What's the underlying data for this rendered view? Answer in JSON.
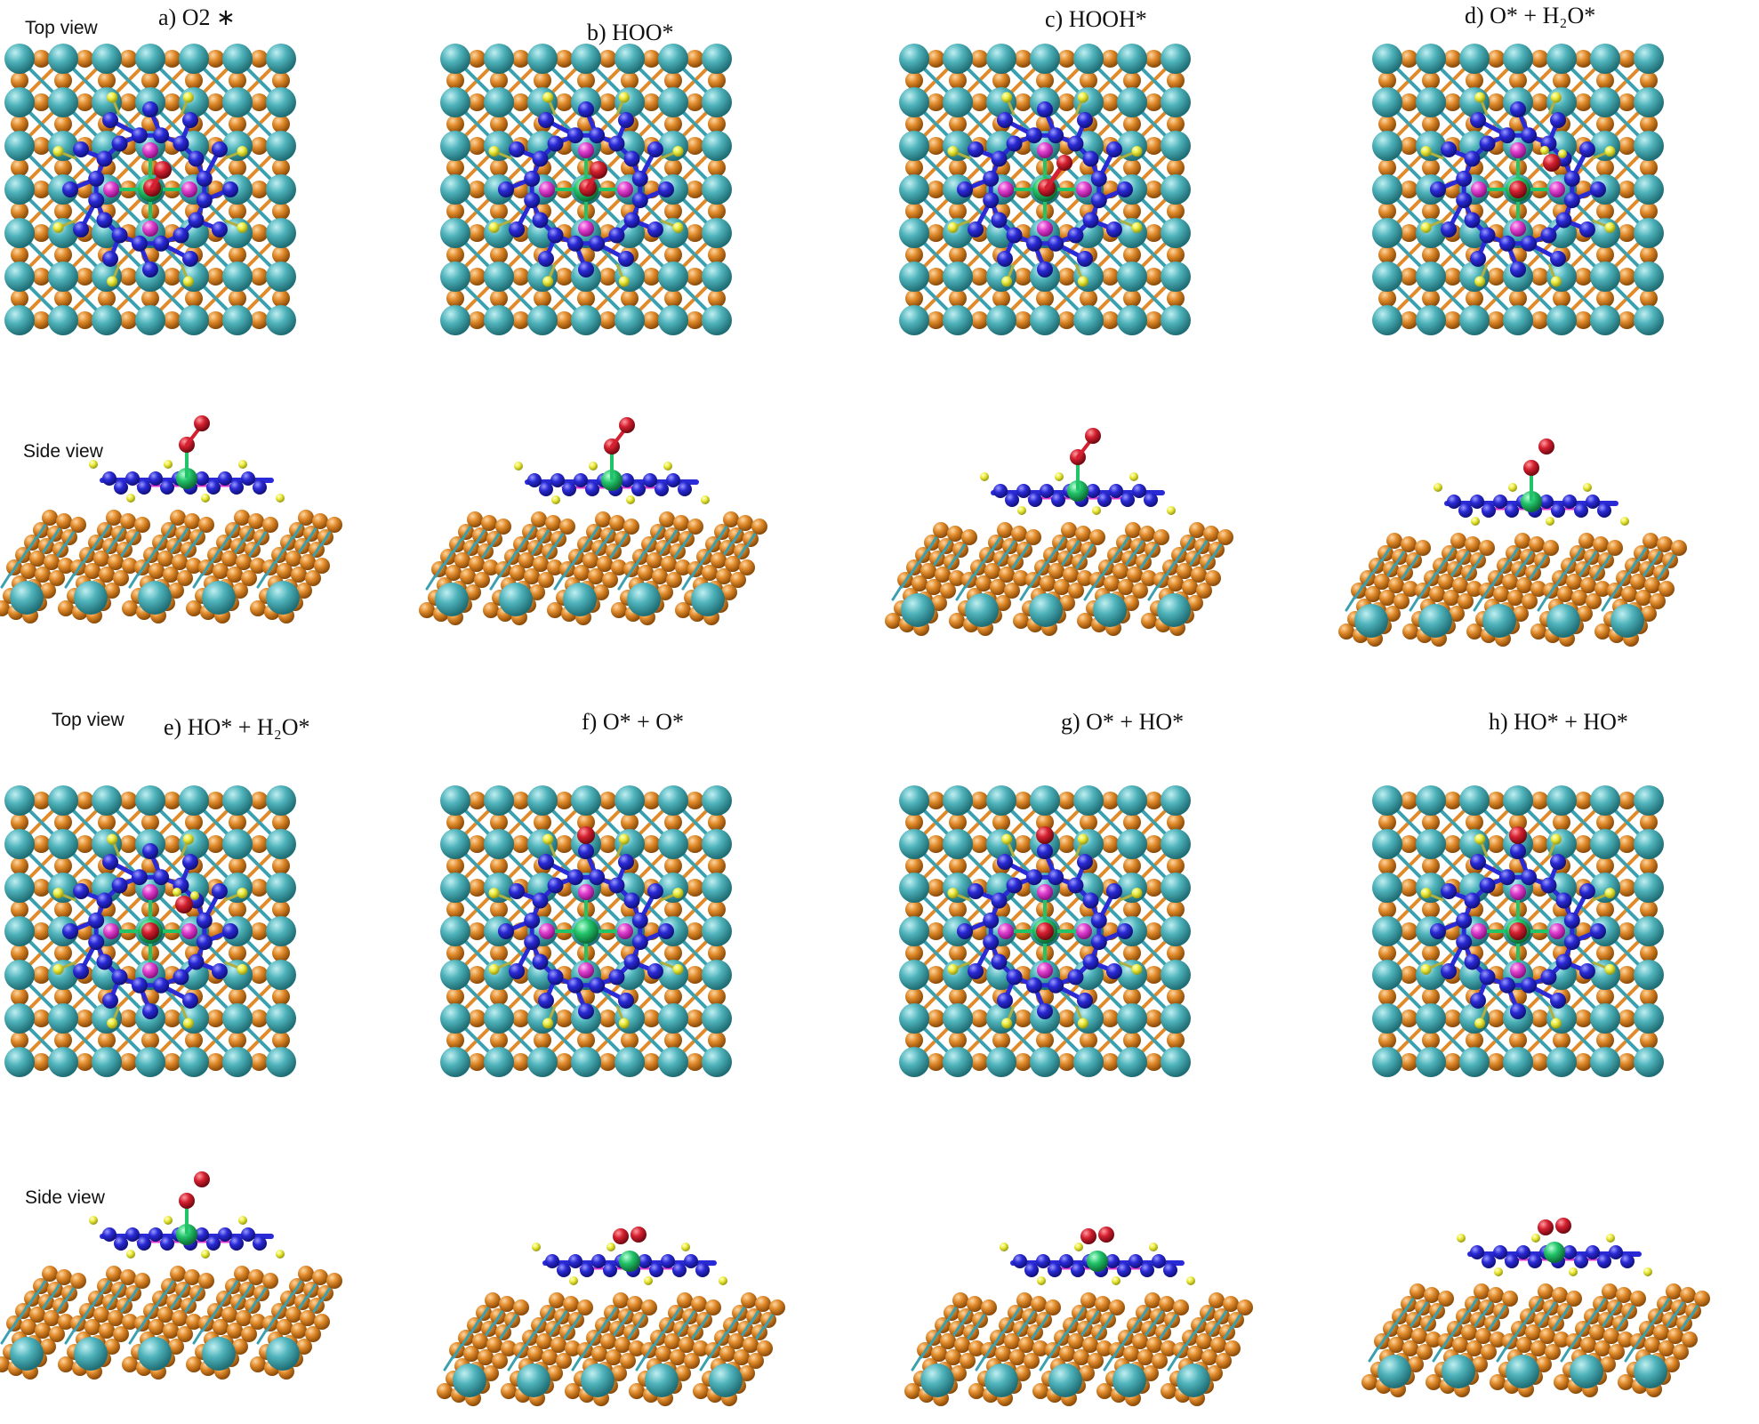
{
  "view_labels": [
    "Top view",
    "Side view",
    "Top view",
    "Side view"
  ],
  "panels": [
    {
      "title": "a) O2 ∗",
      "adsorbate": "O2"
    },
    {
      "title": "b) HOO*",
      "adsorbate": "HOO"
    },
    {
      "title": "c) HOOH*",
      "adsorbate": "HOOH"
    },
    {
      "title": "d) O* + H₂O*",
      "adsorbate": "O_H2O"
    },
    {
      "title": "e) HO* + H₂O*",
      "adsorbate": "HO_H2O"
    },
    {
      "title": "f) O* + O*",
      "adsorbate": "O_O"
    },
    {
      "title": "g) O* + HO*",
      "adsorbate": "O_HO"
    },
    {
      "title": "h) HO* + HO*",
      "adsorbate": "HO_HO"
    }
  ],
  "colors": {
    "substrate_large_atom": "#4fb3bb",
    "substrate_small_atom": "#e08a2a",
    "substrate_bond": "#3aa0b0",
    "ring_atom": "#2a2ad6",
    "coordinating_atom": "#e040d0",
    "metal_center": "#22c46a",
    "oxygen": "#d42030",
    "hydrogen": "#eded40"
  },
  "atom_legend_names": [
    "substrate-large-atom",
    "substrate-small-atom",
    "ring-atom",
    "coordinating-atom",
    "metal-center",
    "oxygen-atom",
    "hydrogen-atom"
  ]
}
